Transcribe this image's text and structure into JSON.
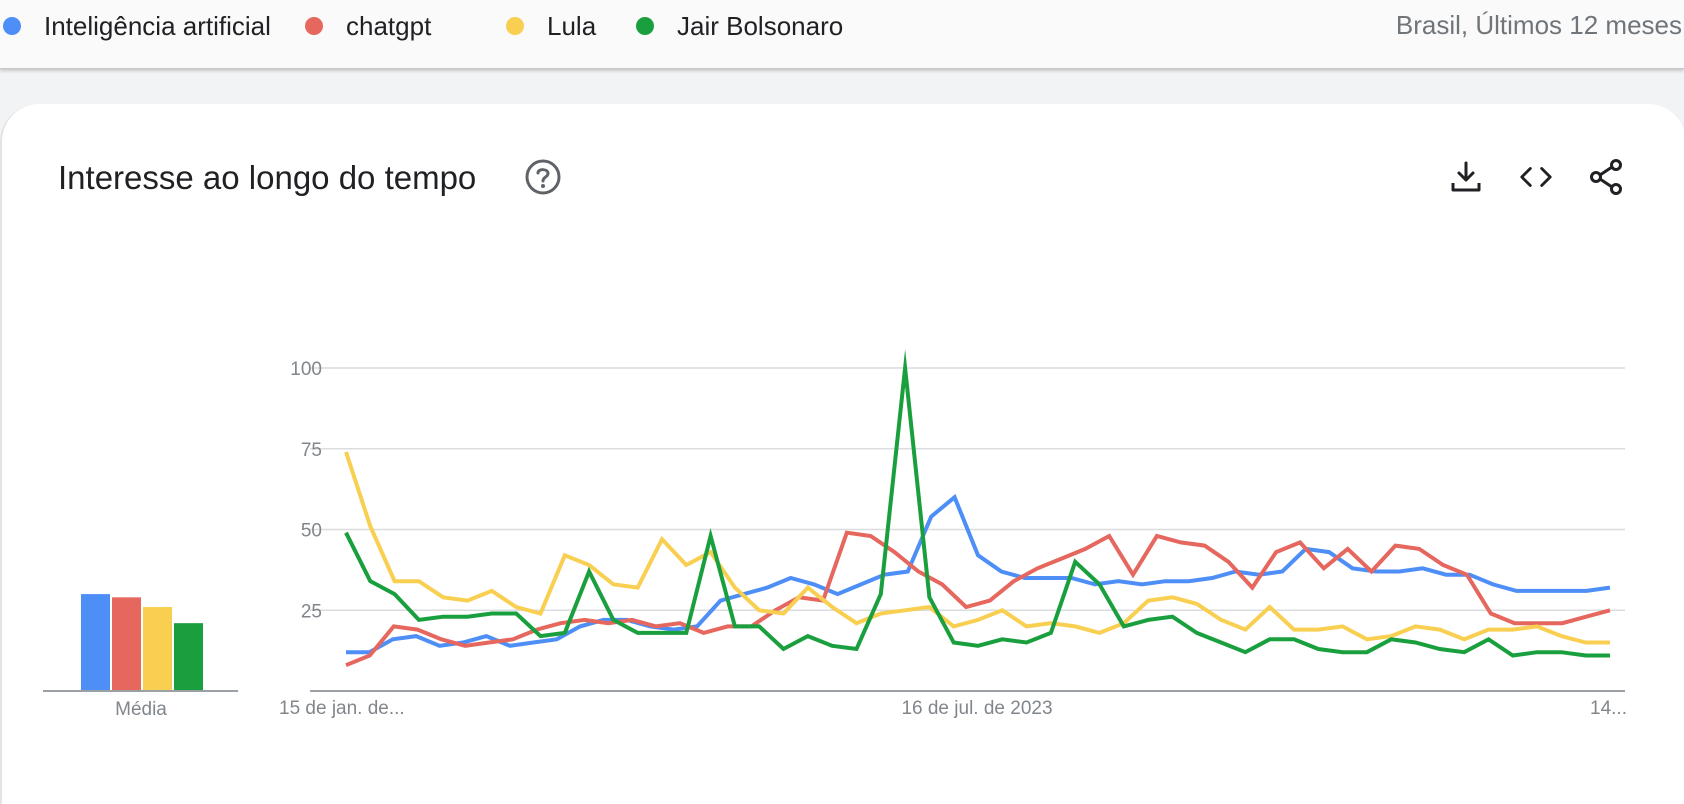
{
  "legend": [
    {
      "label": "Inteligência artificial",
      "color": "#4e8ef7"
    },
    {
      "label": "chatgpt",
      "color": "#e5675e"
    },
    {
      "label": "Lula",
      "color": "#f8cf50"
    },
    {
      "label": "Jair Bolsonaro",
      "color": "#1a9f3e"
    }
  ],
  "region": "Brasil, Últimos 12 meses",
  "card": {
    "title": "Interesse ao longo do tempo",
    "help_icon": "help-circle-icon",
    "actions": [
      "download-icon",
      "embed-code-icon",
      "share-icon"
    ]
  },
  "chart_data": {
    "type": "line",
    "ylim": [
      0,
      100
    ],
    "yticks": [
      25,
      50,
      75,
      100
    ],
    "grid": true,
    "x_tick_labels": [
      "15 de jan. de...",
      "16 de jul. de 2023",
      "14..."
    ],
    "averages_label": "Média",
    "averages": [
      {
        "series": "Inteligência artificial",
        "value": 30
      },
      {
        "series": "chatgpt",
        "value": 29
      },
      {
        "series": "Lula",
        "value": 26
      },
      {
        "series": "Jair Bolsonaro",
        "value": 21
      }
    ],
    "series": [
      {
        "name": "Inteligência artificial",
        "color": "#4e8ef7",
        "values": [
          12,
          12,
          16,
          17,
          14,
          15,
          17,
          14,
          15,
          16,
          20,
          22,
          22,
          20,
          19,
          20,
          28,
          30,
          32,
          35,
          33,
          30,
          33,
          36,
          37,
          54,
          60,
          42,
          37,
          35,
          35,
          35,
          33,
          34,
          33,
          34,
          34,
          35,
          37,
          36,
          37,
          44,
          43,
          38,
          37,
          37,
          38,
          36,
          36,
          33,
          31,
          31,
          31,
          31,
          32
        ]
      },
      {
        "name": "chatgpt",
        "color": "#e5675e",
        "values": [
          8,
          11,
          20,
          19,
          16,
          14,
          15,
          16,
          19,
          21,
          22,
          21,
          22,
          20,
          21,
          18,
          20,
          20,
          25,
          29,
          28,
          49,
          48,
          43,
          37,
          33,
          26,
          28,
          34,
          38,
          41,
          44,
          48,
          36,
          48,
          46,
          45,
          40,
          32,
          43,
          46,
          38,
          44,
          37,
          45,
          44,
          39,
          36,
          24,
          21,
          21,
          21,
          23,
          25
        ]
      },
      {
        "name": "Lula",
        "color": "#f8cf50",
        "values": [
          74,
          51,
          34,
          34,
          29,
          28,
          31,
          26,
          24,
          42,
          39,
          33,
          32,
          47,
          39,
          43,
          32,
          25,
          24,
          32,
          26,
          21,
          24,
          25,
          26,
          20,
          22,
          25,
          20,
          21,
          20,
          18,
          21,
          28,
          29,
          27,
          22,
          19,
          26,
          19,
          19,
          20,
          16,
          17,
          20,
          19,
          16,
          19,
          19,
          20,
          17,
          15,
          15
        ]
      },
      {
        "name": "Jair Bolsonaro",
        "color": "#1a9f3e",
        "values": [
          49,
          34,
          30,
          22,
          23,
          23,
          24,
          24,
          17,
          18,
          37,
          22,
          18,
          18,
          18,
          48,
          20,
          20,
          13,
          17,
          14,
          13,
          30,
          100,
          29,
          15,
          14,
          16,
          15,
          18,
          40,
          33,
          20,
          22,
          23,
          18,
          15,
          12,
          16,
          16,
          13,
          12,
          12,
          16,
          15,
          13,
          12,
          16,
          11,
          12,
          12,
          11,
          11
        ]
      }
    ]
  }
}
